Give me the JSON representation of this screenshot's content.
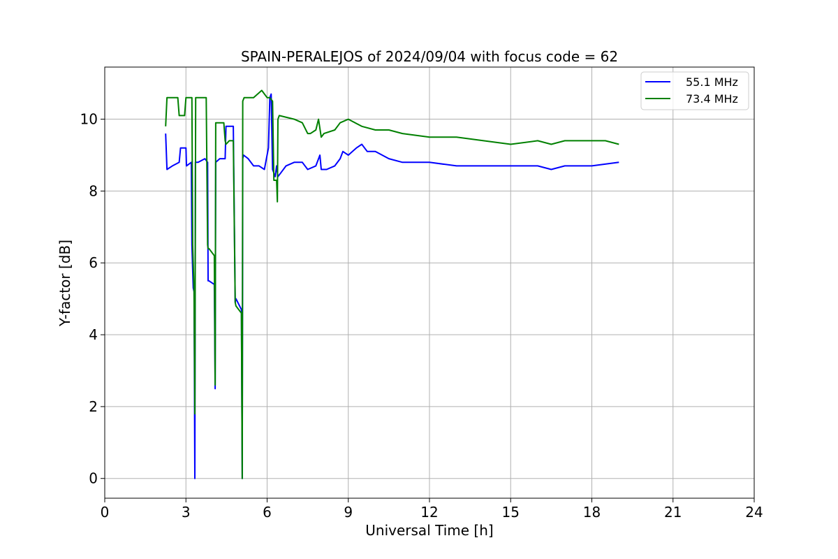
{
  "chart_data": {
    "type": "line",
    "title": "SPAIN-PERALEJOS of 2024/09/04 with focus code = 62",
    "xlabel": "Universal Time [h]",
    "ylabel": "Y-factor [dB]",
    "xlim": [
      0,
      24
    ],
    "ylim": [
      -0.55,
      11.45
    ],
    "xticks": [
      0,
      3,
      6,
      9,
      12,
      15,
      18,
      21,
      24
    ],
    "yticks": [
      0,
      2,
      4,
      6,
      8,
      10
    ],
    "grid": true,
    "legend_position": "top-right",
    "series": [
      {
        "name": "55.1 MHz",
        "color": "#0000ff",
        "x": [
          2.25,
          2.3,
          2.5,
          2.75,
          2.8,
          3.0,
          3.02,
          3.2,
          3.22,
          3.27,
          3.3,
          3.33,
          3.35,
          3.45,
          3.7,
          3.8,
          3.82,
          3.85,
          4.05,
          4.08,
          4.1,
          4.25,
          4.45,
          4.48,
          4.6,
          4.75,
          4.82,
          4.85,
          5.05,
          5.08,
          5.1,
          5.13,
          5.3,
          5.5,
          5.7,
          5.9,
          6.05,
          6.1,
          6.15,
          6.2,
          6.25,
          6.3,
          6.35,
          6.4,
          6.5,
          6.7,
          7.0,
          7.3,
          7.5,
          7.8,
          7.95,
          8.0,
          8.2,
          8.5,
          8.7,
          8.8,
          9.0,
          9.3,
          9.5,
          9.7,
          10.0,
          10.5,
          11.0,
          12.0,
          13.0,
          14.0,
          15.0,
          16.0,
          16.5,
          17.0,
          18.0,
          19.0
        ],
        "y": [
          9.6,
          8.6,
          8.7,
          8.8,
          9.2,
          9.2,
          8.7,
          8.8,
          6.5,
          5.3,
          5.2,
          0.0,
          8.8,
          8.8,
          8.9,
          8.8,
          5.5,
          5.5,
          5.4,
          2.5,
          8.8,
          8.9,
          8.9,
          9.8,
          9.8,
          9.8,
          4.9,
          5.0,
          4.7,
          0.0,
          8.9,
          9.0,
          8.9,
          8.7,
          8.7,
          8.6,
          9.2,
          10.6,
          10.7,
          8.6,
          8.5,
          8.4,
          8.7,
          8.4,
          8.5,
          8.7,
          8.8,
          8.8,
          8.6,
          8.7,
          9.0,
          8.6,
          8.6,
          8.7,
          8.9,
          9.1,
          9.0,
          9.2,
          9.3,
          9.1,
          9.1,
          8.9,
          8.8,
          8.8,
          8.7,
          8.7,
          8.7,
          8.7,
          8.6,
          8.7,
          8.7,
          8.8
        ]
      },
      {
        "name": "73.4 MHz",
        "color": "#008000",
        "x": [
          2.25,
          2.3,
          2.7,
          2.75,
          2.95,
          3.0,
          3.05,
          3.22,
          3.25,
          3.3,
          3.33,
          3.36,
          3.4,
          3.75,
          3.8,
          3.82,
          3.85,
          4.05,
          4.08,
          4.1,
          4.4,
          4.45,
          4.48,
          4.6,
          4.75,
          4.82,
          4.85,
          5.05,
          5.08,
          5.1,
          5.15,
          5.5,
          5.8,
          6.0,
          6.1,
          6.2,
          6.25,
          6.35,
          6.38,
          6.4,
          6.45,
          7.0,
          7.3,
          7.5,
          7.6,
          7.8,
          7.9,
          8.0,
          8.1,
          8.5,
          8.7,
          9.0,
          9.5,
          10.0,
          10.5,
          11.0,
          12.0,
          13.0,
          14.0,
          15.0,
          16.0,
          16.5,
          17.0,
          18.0,
          18.5,
          19.0
        ],
        "y": [
          9.8,
          10.6,
          10.6,
          10.1,
          10.1,
          10.6,
          10.6,
          10.6,
          6.5,
          5.2,
          1.8,
          10.6,
          10.6,
          10.6,
          6.5,
          6.4,
          6.4,
          6.2,
          2.6,
          9.9,
          9.9,
          9.4,
          9.3,
          9.4,
          9.4,
          4.9,
          4.8,
          4.6,
          0.0,
          10.5,
          10.6,
          10.6,
          10.8,
          10.6,
          10.6,
          10.5,
          8.3,
          8.3,
          7.7,
          10.0,
          10.1,
          10.0,
          9.9,
          9.6,
          9.6,
          9.7,
          10.0,
          9.5,
          9.6,
          9.7,
          9.9,
          10.0,
          9.8,
          9.7,
          9.7,
          9.6,
          9.5,
          9.5,
          9.4,
          9.3,
          9.4,
          9.3,
          9.4,
          9.4,
          9.4,
          9.3
        ]
      }
    ]
  }
}
